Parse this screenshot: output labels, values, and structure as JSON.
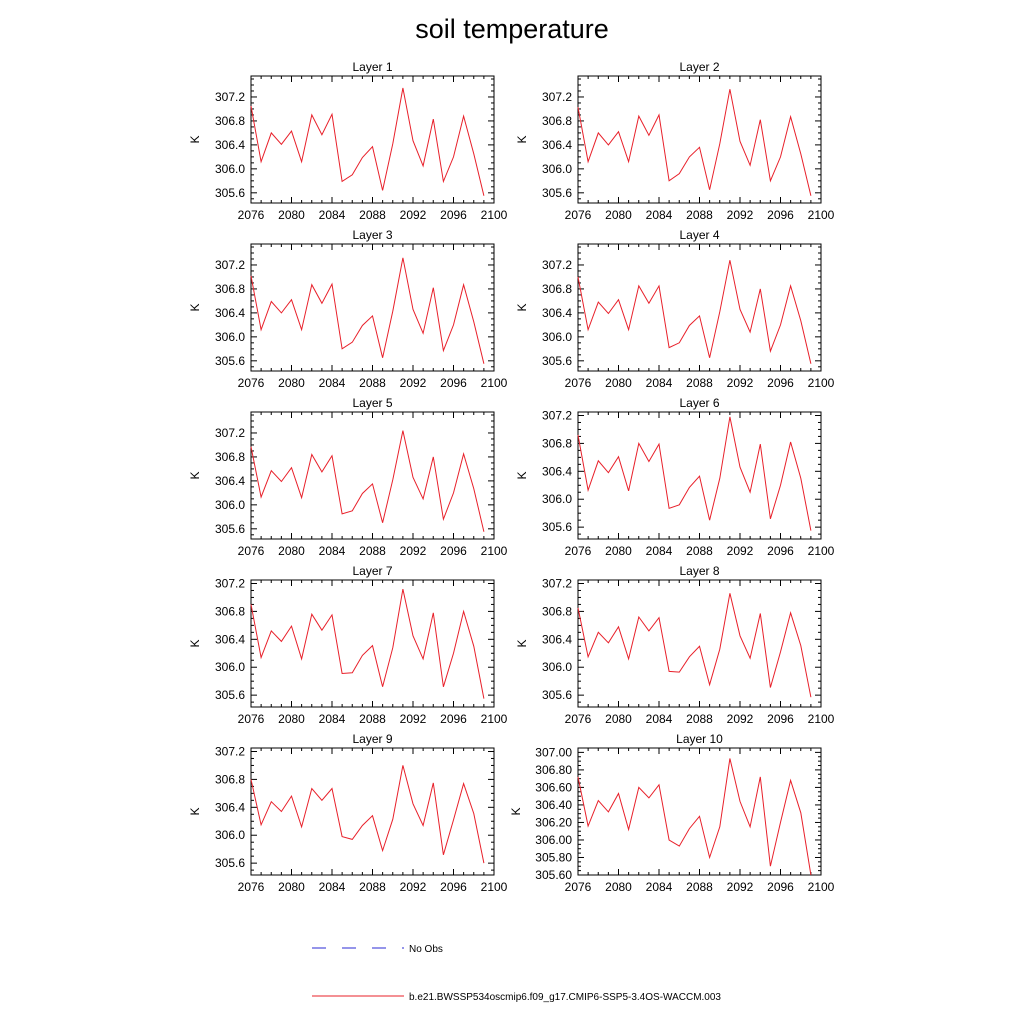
{
  "figure": {
    "title": "soil temperature",
    "legend": [
      {
        "label": "No Obs",
        "color": "#2b2bd6",
        "style": "dashed"
      },
      {
        "label": "b.e21.BWSSP534oscmip6.f09_g17.CMIP6-SSP5-3.4OS-WACCM.003",
        "color": "#e8202a",
        "style": "solid"
      }
    ]
  },
  "chart_data": [
    {
      "type": "line",
      "title": "Layer 1",
      "xlabel": "",
      "ylabel": "K",
      "xlim": [
        2076,
        2100
      ],
      "ylim": [
        305.43,
        307.55
      ],
      "xticks": [
        2076,
        2080,
        2084,
        2088,
        2092,
        2096,
        2100
      ],
      "yticks": [
        "305.6",
        "306.0",
        "306.4",
        "306.8",
        "307.2"
      ],
      "series": [
        {
          "color": "#e8202a",
          "x": [
            2076,
            2077,
            2078,
            2079,
            2080,
            2081,
            2082,
            2083,
            2084,
            2085,
            2086,
            2087,
            2088,
            2089,
            2090,
            2091,
            2092,
            2093,
            2094,
            2095,
            2096,
            2097,
            2098,
            2099
          ],
          "values": [
            307.05,
            306.12,
            306.6,
            306.41,
            306.63,
            306.12,
            306.9,
            306.57,
            306.91,
            305.79,
            305.9,
            306.19,
            306.37,
            305.64,
            306.42,
            307.35,
            306.47,
            306.05,
            306.83,
            305.79,
            306.2,
            306.88,
            306.25,
            305.55
          ]
        }
      ]
    },
    {
      "type": "line",
      "title": "Layer 2",
      "xlabel": "",
      "ylabel": "K",
      "xlim": [
        2076,
        2100
      ],
      "ylim": [
        305.43,
        307.55
      ],
      "xticks": [
        2076,
        2080,
        2084,
        2088,
        2092,
        2096,
        2100
      ],
      "yticks": [
        "305.6",
        "306.0",
        "306.4",
        "306.8",
        "307.2"
      ],
      "series": [
        {
          "color": "#e8202a",
          "x": [
            2076,
            2077,
            2078,
            2079,
            2080,
            2081,
            2082,
            2083,
            2084,
            2085,
            2086,
            2087,
            2088,
            2089,
            2090,
            2091,
            2092,
            2093,
            2094,
            2095,
            2096,
            2097,
            2098,
            2099
          ],
          "values": [
            307.03,
            306.12,
            306.6,
            306.4,
            306.62,
            306.12,
            306.88,
            306.56,
            306.9,
            305.8,
            305.92,
            306.2,
            306.36,
            305.65,
            306.42,
            307.33,
            306.46,
            306.06,
            306.82,
            305.8,
            306.2,
            306.87,
            306.25,
            305.55
          ]
        }
      ]
    },
    {
      "type": "line",
      "title": "Layer 3",
      "xlabel": "",
      "ylabel": "K",
      "xlim": [
        2076,
        2100
      ],
      "ylim": [
        305.43,
        307.55
      ],
      "xticks": [
        2076,
        2080,
        2084,
        2088,
        2092,
        2096,
        2100
      ],
      "yticks": [
        "305.6",
        "306.0",
        "306.4",
        "306.8",
        "307.2"
      ],
      "series": [
        {
          "color": "#e8202a",
          "x": [
            2076,
            2077,
            2078,
            2079,
            2080,
            2081,
            2082,
            2083,
            2084,
            2085,
            2086,
            2087,
            2088,
            2089,
            2090,
            2091,
            2092,
            2093,
            2094,
            2095,
            2096,
            2097,
            2098,
            2099
          ],
          "values": [
            307.02,
            306.12,
            306.59,
            306.4,
            306.62,
            306.12,
            306.87,
            306.56,
            306.88,
            305.8,
            305.91,
            306.19,
            306.35,
            305.65,
            306.43,
            307.32,
            306.46,
            306.06,
            306.82,
            305.77,
            306.2,
            306.87,
            306.25,
            305.55
          ]
        }
      ]
    },
    {
      "type": "line",
      "title": "Layer 4",
      "xlabel": "",
      "ylabel": "K",
      "xlim": [
        2076,
        2100
      ],
      "ylim": [
        305.43,
        307.55
      ],
      "xticks": [
        2076,
        2080,
        2084,
        2088,
        2092,
        2096,
        2100
      ],
      "yticks": [
        "305.6",
        "306.0",
        "306.4",
        "306.8",
        "307.2"
      ],
      "series": [
        {
          "color": "#e8202a",
          "x": [
            2076,
            2077,
            2078,
            2079,
            2080,
            2081,
            2082,
            2083,
            2084,
            2085,
            2086,
            2087,
            2088,
            2089,
            2090,
            2091,
            2092,
            2093,
            2094,
            2095,
            2096,
            2097,
            2098,
            2099
          ],
          "values": [
            307.0,
            306.12,
            306.58,
            306.39,
            306.62,
            306.12,
            306.85,
            306.56,
            306.85,
            305.82,
            305.9,
            306.19,
            306.35,
            305.65,
            306.42,
            307.28,
            306.46,
            306.08,
            306.8,
            305.76,
            306.2,
            306.85,
            306.27,
            305.55
          ]
        }
      ]
    },
    {
      "type": "line",
      "title": "Layer 5",
      "xlabel": "",
      "ylabel": "K",
      "xlim": [
        2076,
        2100
      ],
      "ylim": [
        305.43,
        307.55
      ],
      "xticks": [
        2076,
        2080,
        2084,
        2088,
        2092,
        2096,
        2100
      ],
      "yticks": [
        "305.6",
        "306.0",
        "306.4",
        "306.8",
        "307.2"
      ],
      "series": [
        {
          "color": "#e8202a",
          "x": [
            2076,
            2077,
            2078,
            2079,
            2080,
            2081,
            2082,
            2083,
            2084,
            2085,
            2086,
            2087,
            2088,
            2089,
            2090,
            2091,
            2092,
            2093,
            2094,
            2095,
            2096,
            2097,
            2098,
            2099
          ],
          "values": [
            306.97,
            306.13,
            306.57,
            306.39,
            306.62,
            306.12,
            306.84,
            306.55,
            306.82,
            305.85,
            305.9,
            306.19,
            306.35,
            305.7,
            306.42,
            307.24,
            306.46,
            306.1,
            306.8,
            305.76,
            306.2,
            306.85,
            306.27,
            305.55
          ]
        }
      ]
    },
    {
      "type": "line",
      "title": "Layer 6",
      "xlabel": "",
      "ylabel": "K",
      "xlim": [
        2076,
        2100
      ],
      "ylim": [
        305.43,
        307.25
      ],
      "xticks": [
        2076,
        2080,
        2084,
        2088,
        2092,
        2096,
        2100
      ],
      "yticks": [
        "305.6",
        "306.0",
        "306.4",
        "306.8",
        "307.2"
      ],
      "series": [
        {
          "color": "#e8202a",
          "x": [
            2076,
            2077,
            2078,
            2079,
            2080,
            2081,
            2082,
            2083,
            2084,
            2085,
            2086,
            2087,
            2088,
            2089,
            2090,
            2091,
            2092,
            2093,
            2094,
            2095,
            2096,
            2097,
            2098,
            2099
          ],
          "values": [
            306.92,
            306.13,
            306.55,
            306.38,
            306.61,
            306.12,
            306.8,
            306.54,
            306.79,
            305.87,
            305.92,
            306.17,
            306.33,
            305.7,
            306.3,
            307.18,
            306.46,
            306.1,
            306.79,
            305.72,
            306.2,
            306.82,
            306.3,
            305.55
          ]
        }
      ]
    },
    {
      "type": "line",
      "title": "Layer 7",
      "xlabel": "",
      "ylabel": "K",
      "xlim": [
        2076,
        2100
      ],
      "ylim": [
        305.43,
        307.25
      ],
      "xticks": [
        2076,
        2080,
        2084,
        2088,
        2092,
        2096,
        2100
      ],
      "yticks": [
        "305.6",
        "306.0",
        "306.4",
        "306.8",
        "307.2"
      ],
      "series": [
        {
          "color": "#e8202a",
          "x": [
            2076,
            2077,
            2078,
            2079,
            2080,
            2081,
            2082,
            2083,
            2084,
            2085,
            2086,
            2087,
            2088,
            2089,
            2090,
            2091,
            2092,
            2093,
            2094,
            2095,
            2096,
            2097,
            2098,
            2099
          ],
          "values": [
            306.9,
            306.14,
            306.52,
            306.37,
            306.59,
            306.12,
            306.76,
            306.53,
            306.75,
            305.91,
            305.92,
            306.17,
            306.31,
            305.72,
            306.28,
            307.12,
            306.45,
            306.12,
            306.78,
            305.72,
            306.2,
            306.8,
            306.3,
            305.55
          ]
        }
      ]
    },
    {
      "type": "line",
      "title": "Layer 8",
      "xlabel": "",
      "ylabel": "K",
      "xlim": [
        2076,
        2100
      ],
      "ylim": [
        305.43,
        307.25
      ],
      "xticks": [
        2076,
        2080,
        2084,
        2088,
        2092,
        2096,
        2100
      ],
      "yticks": [
        "305.6",
        "306.0",
        "306.4",
        "306.8",
        "307.2"
      ],
      "series": [
        {
          "color": "#e8202a",
          "x": [
            2076,
            2077,
            2078,
            2079,
            2080,
            2081,
            2082,
            2083,
            2084,
            2085,
            2086,
            2087,
            2088,
            2089,
            2090,
            2091,
            2092,
            2093,
            2094,
            2095,
            2096,
            2097,
            2098,
            2099
          ],
          "values": [
            306.85,
            306.15,
            306.5,
            306.35,
            306.58,
            306.12,
            306.72,
            306.52,
            306.71,
            305.94,
            305.93,
            306.15,
            306.3,
            305.75,
            306.26,
            307.06,
            306.45,
            306.13,
            306.77,
            305.71,
            306.22,
            306.78,
            306.31,
            305.57
          ]
        }
      ]
    },
    {
      "type": "line",
      "title": "Layer 9",
      "xlabel": "",
      "ylabel": "K",
      "xlim": [
        2076,
        2100
      ],
      "ylim": [
        305.43,
        307.25
      ],
      "xticks": [
        2076,
        2080,
        2084,
        2088,
        2092,
        2096,
        2100
      ],
      "yticks": [
        "305.6",
        "306.0",
        "306.4",
        "306.8",
        "307.2"
      ],
      "series": [
        {
          "color": "#e8202a",
          "x": [
            2076,
            2077,
            2078,
            2079,
            2080,
            2081,
            2082,
            2083,
            2084,
            2085,
            2086,
            2087,
            2088,
            2089,
            2090,
            2091,
            2092,
            2093,
            2094,
            2095,
            2096,
            2097,
            2098,
            2099
          ],
          "values": [
            306.8,
            306.15,
            306.48,
            306.34,
            306.56,
            306.12,
            306.67,
            306.5,
            306.67,
            305.98,
            305.94,
            306.14,
            306.28,
            305.78,
            306.23,
            307.0,
            306.45,
            306.14,
            306.75,
            305.72,
            306.22,
            306.74,
            306.31,
            305.6
          ]
        }
      ]
    },
    {
      "type": "line",
      "title": "Layer 10",
      "xlabel": "",
      "ylabel": "K",
      "xlim": [
        2076,
        2100
      ],
      "ylim": [
        305.6,
        307.05
      ],
      "xticks": [
        2076,
        2080,
        2084,
        2088,
        2092,
        2096,
        2100
      ],
      "yticks": [
        "305.60",
        "305.80",
        "306.00",
        "306.20",
        "306.40",
        "306.60",
        "306.80",
        "307.00"
      ],
      "series": [
        {
          "color": "#e8202a",
          "x": [
            2076,
            2077,
            2078,
            2079,
            2080,
            2081,
            2082,
            2083,
            2084,
            2085,
            2086,
            2087,
            2088,
            2089,
            2090,
            2091,
            2092,
            2093,
            2094,
            2095,
            2096,
            2097,
            2098,
            2099
          ],
          "values": [
            306.72,
            306.16,
            306.45,
            306.32,
            306.53,
            306.12,
            306.6,
            306.48,
            306.63,
            306.0,
            305.93,
            306.13,
            306.27,
            305.8,
            306.15,
            306.93,
            306.44,
            306.15,
            306.72,
            305.7,
            306.2,
            306.68,
            306.31,
            305.6
          ]
        }
      ]
    }
  ]
}
